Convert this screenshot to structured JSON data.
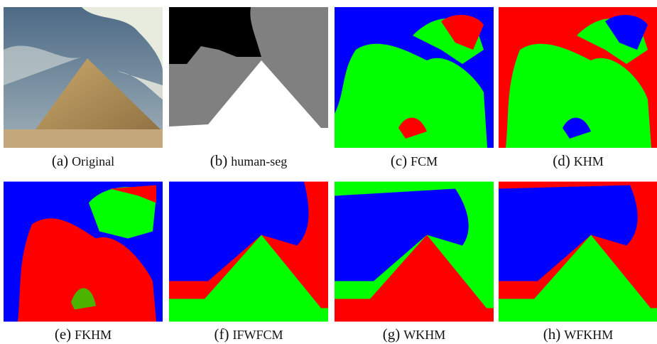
{
  "panels": [
    {
      "label": "(a)",
      "name": "Original"
    },
    {
      "label": "(b)",
      "name": "human-seg"
    },
    {
      "label": "(c)",
      "name": "FCM"
    },
    {
      "label": "(d)",
      "name": "KHM"
    },
    {
      "label": "(e)",
      "name": "FKHM"
    },
    {
      "label": "(f)",
      "name": "IFWFCM"
    },
    {
      "label": "(g)",
      "name": "WKHM"
    },
    {
      "label": "(h)",
      "name": "WFKHM"
    }
  ]
}
